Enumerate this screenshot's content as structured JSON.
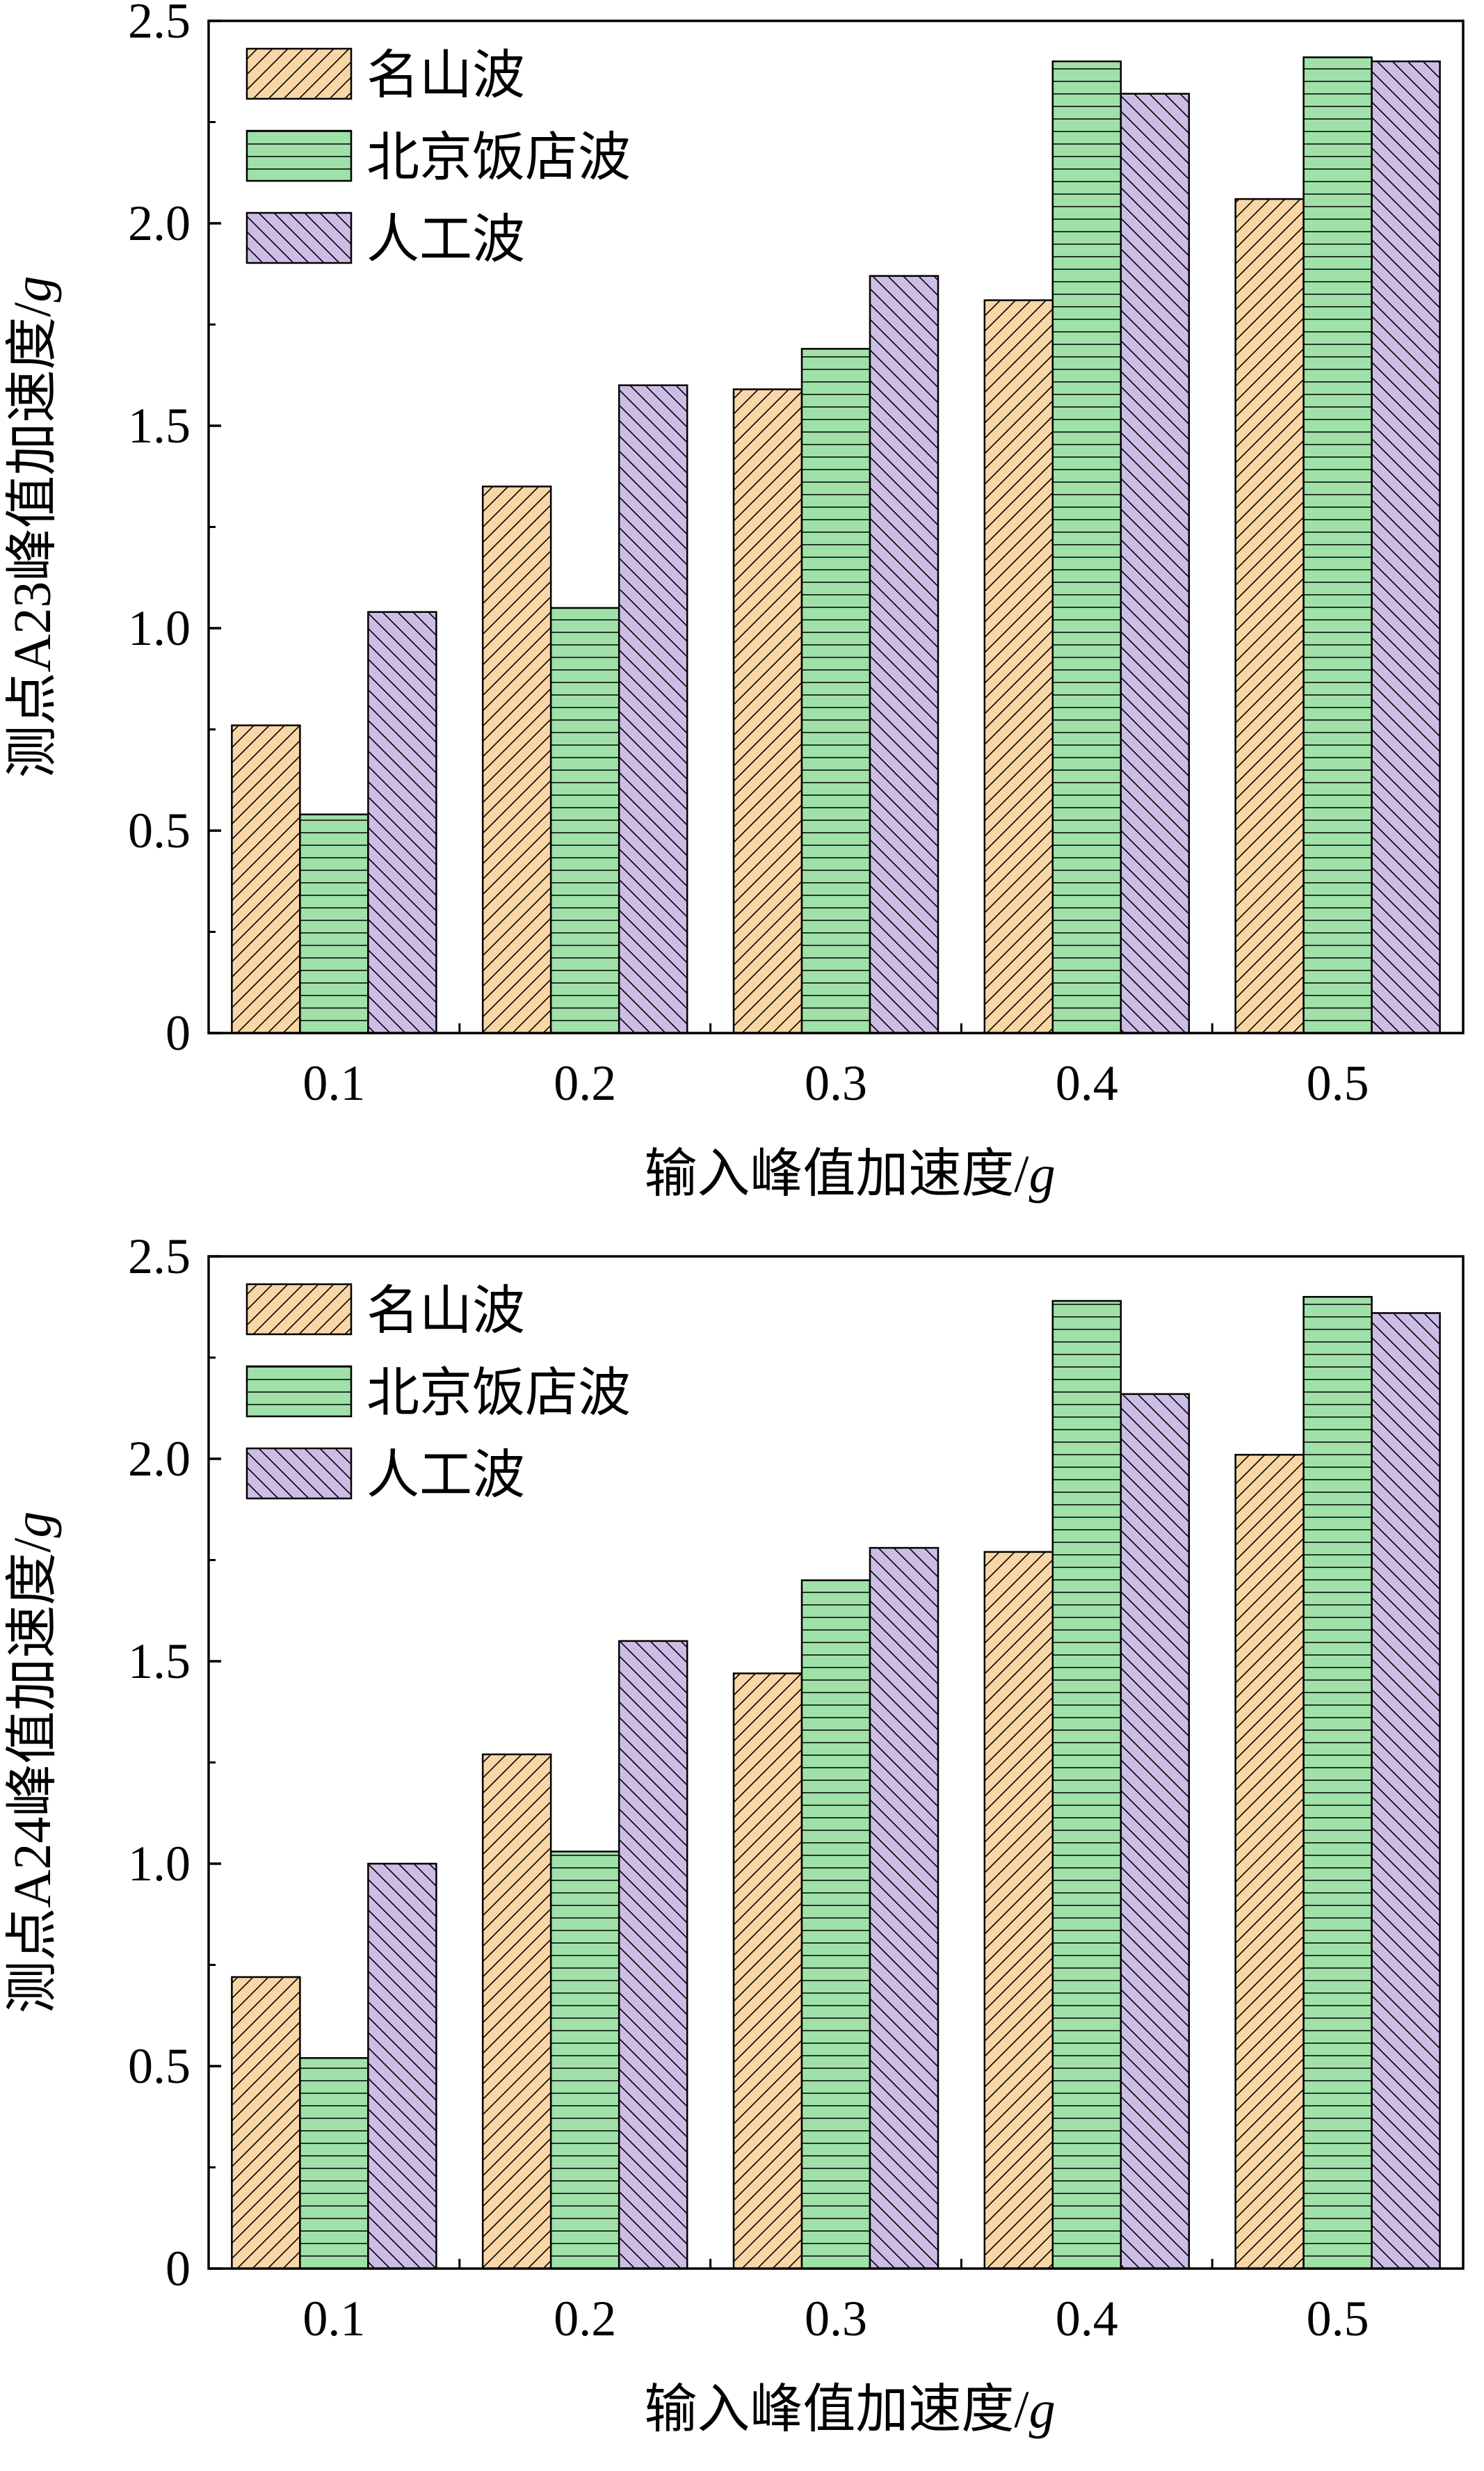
{
  "legend_colors": {
    "名山波": "#f9d6a5",
    "北京饭店波": "#9fe1a8",
    "人工波": "#cdbde6"
  },
  "chart_data": [
    {
      "type": "bar",
      "categories": [
        "0.1",
        "0.2",
        "0.3",
        "0.4",
        "0.5"
      ],
      "series": [
        {
          "name": "名山波",
          "values": [
            0.76,
            1.35,
            1.59,
            1.81,
            2.06
          ]
        },
        {
          "name": "北京饭店波",
          "values": [
            0.54,
            1.05,
            1.69,
            2.4,
            2.41
          ]
        },
        {
          "name": "人工波",
          "values": [
            1.04,
            1.6,
            1.87,
            2.32,
            2.4
          ]
        }
      ],
      "xlabel_main": "输入峰值加速度/",
      "xlabel_unit": "g",
      "ylabel_main": "测点A23峰值加速度/",
      "ylabel_unit": "g",
      "ylim": [
        0,
        2.5
      ],
      "yticks": [
        "0",
        "0.5",
        "1.0",
        "1.5",
        "2.0",
        "2.5"
      ],
      "legend_position": "top-left",
      "grid": false
    },
    {
      "type": "bar",
      "categories": [
        "0.1",
        "0.2",
        "0.3",
        "0.4",
        "0.5"
      ],
      "series": [
        {
          "name": "名山波",
          "values": [
            0.72,
            1.27,
            1.47,
            1.77,
            2.01
          ]
        },
        {
          "name": "北京饭店波",
          "values": [
            0.52,
            1.03,
            1.7,
            2.39,
            2.4
          ]
        },
        {
          "name": "人工波",
          "values": [
            1.0,
            1.55,
            1.78,
            2.16,
            2.36
          ]
        }
      ],
      "xlabel_main": "输入峰值加速度/",
      "xlabel_unit": "g",
      "ylabel_main": "测点A24峰值加速度/",
      "ylabel_unit": "g",
      "ylim": [
        0,
        2.5
      ],
      "yticks": [
        "0",
        "0.5",
        "1.0",
        "1.5",
        "2.0",
        "2.5"
      ],
      "legend_position": "top-left",
      "grid": false
    }
  ]
}
